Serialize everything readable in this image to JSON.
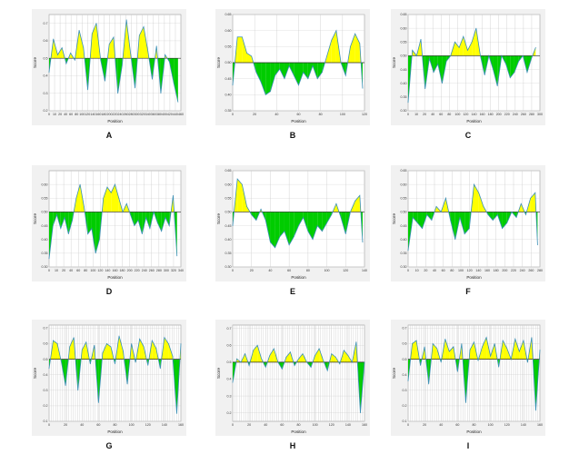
{
  "figure": {
    "x_label": "Position",
    "y_label": "Score",
    "colors": {
      "above": "#ffff00",
      "below": "#00cc00",
      "line": "#3a8fb5",
      "threshold": "#2a2a2a"
    }
  },
  "chart_data": [
    {
      "panel_label": "A",
      "type": "area",
      "xlabel": "Position",
      "ylabel": "Score",
      "threshold": 0.5,
      "xlim": [
        0,
        460
      ],
      "ylim": [
        0.2,
        0.75
      ],
      "x_ticks": [
        "0",
        "10",
        "20",
        "40",
        "60",
        "80",
        "100",
        "120",
        "140",
        "160",
        "180",
        "200",
        "220",
        "240",
        "260",
        "280",
        "300",
        "320",
        "340",
        "360",
        "380",
        "400",
        "420",
        "440",
        "460"
      ],
      "y_ticks": [
        "0.2",
        "0.3",
        "0.4",
        "0.5",
        "0.6",
        "0.7"
      ],
      "y_tick_values": [
        0.2,
        0.3,
        0.4,
        0.5,
        0.6,
        0.7
      ],
      "x": [
        0,
        15,
        30,
        45,
        60,
        75,
        90,
        105,
        120,
        135,
        150,
        165,
        180,
        195,
        210,
        225,
        240,
        255,
        270,
        285,
        300,
        315,
        330,
        345,
        360,
        375,
        390,
        405,
        420,
        435,
        450
      ],
      "values": [
        0.42,
        0.61,
        0.52,
        0.56,
        0.47,
        0.53,
        0.49,
        0.66,
        0.56,
        0.32,
        0.64,
        0.7,
        0.49,
        0.37,
        0.58,
        0.62,
        0.3,
        0.46,
        0.72,
        0.52,
        0.33,
        0.63,
        0.68,
        0.54,
        0.38,
        0.57,
        0.3,
        0.52,
        0.48,
        0.36,
        0.25
      ]
    },
    {
      "panel_label": "B",
      "type": "area",
      "xlabel": "Position",
      "ylabel": "Score",
      "threshold": 0.5,
      "xlim": [
        0,
        140
      ],
      "ylim": [
        0.35,
        0.65
      ],
      "x_ticks": [
        "0",
        "20",
        "40",
        "60",
        "80",
        "100",
        "120"
      ],
      "y_ticks": [
        "0.35",
        "0.40",
        "0.45",
        "0.50",
        "0.55",
        "0.60",
        "0.65"
      ],
      "y_tick_values": [
        0.35,
        0.4,
        0.45,
        0.5,
        0.55,
        0.6,
        0.65
      ],
      "x": [
        0,
        5,
        10,
        15,
        20,
        25,
        30,
        35,
        40,
        45,
        50,
        55,
        60,
        65,
        70,
        75,
        80,
        85,
        90,
        95,
        100,
        105,
        110,
        115,
        120,
        125,
        130,
        135,
        138
      ],
      "values": [
        0.43,
        0.58,
        0.58,
        0.53,
        0.52,
        0.47,
        0.44,
        0.4,
        0.41,
        0.46,
        0.48,
        0.45,
        0.49,
        0.46,
        0.43,
        0.47,
        0.45,
        0.49,
        0.45,
        0.47,
        0.52,
        0.57,
        0.6,
        0.5,
        0.46,
        0.55,
        0.59,
        0.56,
        0.42
      ]
    },
    {
      "panel_label": "C",
      "type": "area",
      "xlabel": "Position",
      "ylabel": "Score",
      "threshold": 0.5,
      "xlim": [
        0,
        310
      ],
      "ylim": [
        0.3,
        0.65
      ],
      "x_ticks": [
        "0",
        "10",
        "20",
        "40",
        "60",
        "80",
        "100",
        "120",
        "140",
        "160",
        "180",
        "200",
        "220",
        "240",
        "260",
        "280",
        "300"
      ],
      "y_ticks": [
        "0.30",
        "0.35",
        "0.40",
        "0.45",
        "0.50",
        "0.55",
        "0.60",
        "0.65"
      ],
      "y_tick_values": [
        0.3,
        0.35,
        0.4,
        0.45,
        0.5,
        0.55,
        0.6,
        0.65
      ],
      "x": [
        0,
        10,
        20,
        30,
        40,
        50,
        60,
        70,
        80,
        90,
        100,
        110,
        120,
        130,
        140,
        150,
        160,
        170,
        180,
        190,
        200,
        210,
        220,
        230,
        240,
        250,
        260,
        270,
        280,
        290,
        300
      ],
      "values": [
        0.33,
        0.52,
        0.5,
        0.56,
        0.38,
        0.49,
        0.44,
        0.47,
        0.4,
        0.48,
        0.5,
        0.55,
        0.53,
        0.57,
        0.52,
        0.55,
        0.6,
        0.5,
        0.43,
        0.5,
        0.45,
        0.39,
        0.5,
        0.47,
        0.42,
        0.44,
        0.48,
        0.5,
        0.44,
        0.49,
        0.53
      ]
    },
    {
      "panel_label": "D",
      "type": "area",
      "xlabel": "Position",
      "ylabel": "Score",
      "threshold": 0.5,
      "xlim": [
        0,
        340
      ],
      "ylim": [
        0.3,
        0.65
      ],
      "x_ticks": [
        "0",
        "10",
        "20",
        "40",
        "60",
        "80",
        "100",
        "120",
        "140",
        "160",
        "180",
        "200",
        "220",
        "240",
        "260",
        "280",
        "300",
        "320",
        "340"
      ],
      "y_ticks": [
        "0.30",
        "0.35",
        "0.40",
        "0.45",
        "0.50",
        "0.55",
        "0.60"
      ],
      "y_tick_values": [
        0.3,
        0.35,
        0.4,
        0.45,
        0.5,
        0.55,
        0.6
      ],
      "x": [
        0,
        10,
        20,
        30,
        40,
        50,
        60,
        70,
        80,
        90,
        100,
        110,
        120,
        130,
        140,
        150,
        160,
        170,
        180,
        190,
        200,
        210,
        220,
        230,
        240,
        250,
        260,
        270,
        280,
        290,
        300,
        310,
        320,
        330
      ],
      "values": [
        0.33,
        0.45,
        0.49,
        0.44,
        0.48,
        0.42,
        0.47,
        0.55,
        0.6,
        0.52,
        0.42,
        0.44,
        0.35,
        0.4,
        0.55,
        0.59,
        0.57,
        0.6,
        0.55,
        0.5,
        0.53,
        0.49,
        0.45,
        0.47,
        0.42,
        0.48,
        0.44,
        0.5,
        0.46,
        0.43,
        0.48,
        0.45,
        0.56,
        0.34
      ]
    },
    {
      "panel_label": "E",
      "type": "area",
      "xlabel": "Position",
      "ylabel": "Score",
      "threshold": 0.5,
      "xlim": [
        0,
        140
      ],
      "ylim": [
        0.3,
        0.65
      ],
      "x_ticks": [
        "0",
        "20",
        "40",
        "60",
        "80",
        "100",
        "120",
        "140"
      ],
      "y_ticks": [
        "0.30",
        "0.35",
        "0.40",
        "0.45",
        "0.50",
        "0.55",
        "0.60",
        "0.65"
      ],
      "y_tick_values": [
        0.3,
        0.35,
        0.4,
        0.45,
        0.5,
        0.55,
        0.6,
        0.65
      ],
      "x": [
        0,
        5,
        10,
        15,
        20,
        25,
        30,
        35,
        40,
        45,
        50,
        55,
        60,
        65,
        70,
        75,
        80,
        85,
        90,
        95,
        100,
        105,
        110,
        115,
        120,
        125,
        130,
        135,
        138
      ],
      "values": [
        0.45,
        0.62,
        0.6,
        0.52,
        0.49,
        0.47,
        0.51,
        0.47,
        0.39,
        0.37,
        0.41,
        0.43,
        0.38,
        0.41,
        0.45,
        0.48,
        0.43,
        0.4,
        0.45,
        0.43,
        0.46,
        0.49,
        0.53,
        0.48,
        0.42,
        0.5,
        0.54,
        0.56,
        0.39
      ]
    },
    {
      "panel_label": "F",
      "type": "area",
      "xlabel": "Position",
      "ylabel": "Score",
      "threshold": 0.5,
      "xlim": [
        0,
        280
      ],
      "ylim": [
        0.3,
        0.65
      ],
      "x_ticks": [
        "0",
        "10",
        "20",
        "40",
        "60",
        "80",
        "100",
        "120",
        "140",
        "160",
        "180",
        "200",
        "220",
        "240",
        "260",
        "280"
      ],
      "y_ticks": [
        "0.30",
        "0.35",
        "0.40",
        "0.45",
        "0.50",
        "0.55",
        "0.60",
        "0.65"
      ],
      "y_tick_values": [
        0.3,
        0.35,
        0.4,
        0.45,
        0.5,
        0.55,
        0.6,
        0.65
      ],
      "x": [
        0,
        10,
        20,
        30,
        40,
        50,
        60,
        70,
        80,
        90,
        100,
        110,
        120,
        130,
        140,
        150,
        160,
        170,
        180,
        190,
        200,
        210,
        220,
        230,
        240,
        250,
        260,
        270,
        275
      ],
      "values": [
        0.36,
        0.48,
        0.46,
        0.44,
        0.49,
        0.47,
        0.52,
        0.5,
        0.55,
        0.47,
        0.4,
        0.48,
        0.42,
        0.44,
        0.6,
        0.57,
        0.52,
        0.49,
        0.47,
        0.49,
        0.44,
        0.46,
        0.5,
        0.48,
        0.53,
        0.49,
        0.55,
        0.57,
        0.38
      ]
    },
    {
      "panel_label": "G",
      "type": "area",
      "xlabel": "Position",
      "ylabel": "Score",
      "threshold": 0.5,
      "xlim": [
        0,
        160
      ],
      "ylim": [
        0.1,
        0.72
      ],
      "x_ticks": [
        "0",
        "20",
        "40",
        "60",
        "80",
        "100",
        "120",
        "140",
        "160"
      ],
      "y_ticks": [
        "0.1",
        "0.2",
        "0.3",
        "0.4",
        "0.5",
        "0.6",
        "0.7"
      ],
      "y_tick_values": [
        0.1,
        0.2,
        0.3,
        0.4,
        0.5,
        0.6,
        0.7
      ],
      "x": [
        0,
        5,
        10,
        15,
        20,
        25,
        30,
        35,
        40,
        45,
        50,
        55,
        60,
        65,
        70,
        75,
        80,
        85,
        90,
        95,
        100,
        105,
        110,
        115,
        120,
        125,
        130,
        135,
        140,
        145,
        150,
        155,
        160
      ],
      "values": [
        0.44,
        0.62,
        0.6,
        0.48,
        0.33,
        0.58,
        0.64,
        0.3,
        0.56,
        0.61,
        0.47,
        0.59,
        0.22,
        0.54,
        0.6,
        0.58,
        0.47,
        0.65,
        0.55,
        0.34,
        0.6,
        0.48,
        0.63,
        0.58,
        0.46,
        0.62,
        0.57,
        0.44,
        0.64,
        0.6,
        0.52,
        0.15,
        0.6
      ]
    },
    {
      "panel_label": "H",
      "type": "area",
      "xlabel": "Position",
      "ylabel": "Score",
      "threshold": 0.5,
      "xlim": [
        0,
        160
      ],
      "ylim": [
        0.15,
        0.72
      ],
      "x_ticks": [
        "0",
        "20",
        "40",
        "60",
        "80",
        "100",
        "120",
        "140",
        "160"
      ],
      "y_ticks": [
        "0.2",
        "0.3",
        "0.4",
        "0.5",
        "0.6",
        "0.7"
      ],
      "y_tick_values": [
        0.2,
        0.3,
        0.4,
        0.5,
        0.6,
        0.7
      ],
      "x": [
        0,
        5,
        10,
        15,
        20,
        25,
        30,
        35,
        40,
        45,
        50,
        55,
        60,
        65,
        70,
        75,
        80,
        85,
        90,
        95,
        100,
        105,
        110,
        115,
        120,
        125,
        130,
        135,
        140,
        145,
        150,
        155,
        160
      ],
      "values": [
        0.38,
        0.52,
        0.5,
        0.55,
        0.48,
        0.57,
        0.6,
        0.52,
        0.47,
        0.54,
        0.58,
        0.5,
        0.46,
        0.53,
        0.56,
        0.48,
        0.52,
        0.55,
        0.5,
        0.47,
        0.54,
        0.58,
        0.51,
        0.45,
        0.55,
        0.53,
        0.49,
        0.57,
        0.54,
        0.5,
        0.62,
        0.2,
        0.5
      ]
    },
    {
      "panel_label": "I",
      "type": "area",
      "xlabel": "Position",
      "ylabel": "Score",
      "threshold": 0.5,
      "xlim": [
        0,
        160
      ],
      "ylim": [
        0.1,
        0.72
      ],
      "x_ticks": [
        "0",
        "20",
        "40",
        "60",
        "80",
        "100",
        "120",
        "140",
        "160"
      ],
      "y_ticks": [
        "0.1",
        "0.2",
        "0.3",
        "0.4",
        "0.5",
        "0.6",
        "0.7"
      ],
      "y_tick_values": [
        0.1,
        0.2,
        0.3,
        0.4,
        0.5,
        0.6,
        0.7
      ],
      "x": [
        0,
        5,
        10,
        15,
        20,
        25,
        30,
        35,
        40,
        45,
        50,
        55,
        60,
        65,
        70,
        75,
        80,
        85,
        90,
        95,
        100,
        105,
        110,
        115,
        120,
        125,
        130,
        135,
        140,
        145,
        150,
        155,
        160
      ],
      "values": [
        0.36,
        0.6,
        0.62,
        0.46,
        0.58,
        0.34,
        0.6,
        0.57,
        0.48,
        0.63,
        0.55,
        0.58,
        0.42,
        0.6,
        0.22,
        0.56,
        0.61,
        0.49,
        0.58,
        0.64,
        0.52,
        0.6,
        0.45,
        0.62,
        0.57,
        0.5,
        0.63,
        0.55,
        0.62,
        0.48,
        0.64,
        0.17,
        0.56
      ]
    }
  ]
}
